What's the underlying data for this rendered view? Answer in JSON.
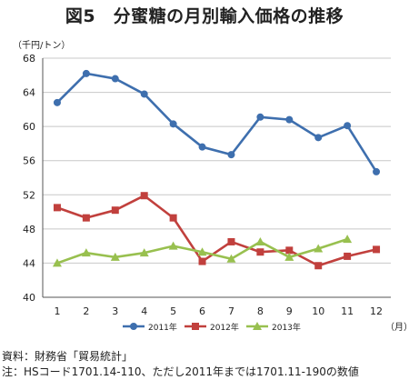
{
  "title": "図5　分蜜糖の月別輸入価格の推移",
  "unit_label": "（千円/トン）",
  "x_unit_label": "（月）",
  "notes": [
    "資料：財務省「貿易統計」",
    "注：HSコード1701.14-110、ただし2011年までは1701.11-190の数値"
  ],
  "chart_data": {
    "type": "line",
    "title": "図5　分蜜糖の月別輸入価格の推移",
    "xlabel": "（月）",
    "ylabel": "（千円/トン）",
    "categories": [
      "1",
      "2",
      "3",
      "4",
      "5",
      "6",
      "7",
      "8",
      "9",
      "10",
      "11",
      "12"
    ],
    "ylim": [
      40,
      68
    ],
    "yticks": [
      40,
      44,
      48,
      52,
      56,
      60,
      64,
      68
    ],
    "grid": true,
    "legend_position": "bottom",
    "series": [
      {
        "name": "2011年",
        "color": "#3e6fae",
        "marker": "circle",
        "values": [
          62.8,
          66.2,
          65.6,
          63.8,
          60.3,
          57.6,
          56.7,
          61.1,
          60.8,
          58.7,
          60.1,
          54.7
        ]
      },
      {
        "name": "2012年",
        "color": "#c1403d",
        "marker": "square",
        "values": [
          50.5,
          49.3,
          50.2,
          51.9,
          49.3,
          44.2,
          46.5,
          45.3,
          45.5,
          43.7,
          44.8,
          45.6
        ]
      },
      {
        "name": "2013年",
        "color": "#98c04f",
        "marker": "triangle",
        "values": [
          44.0,
          45.2,
          44.7,
          45.2,
          46.0,
          45.3,
          44.5,
          46.5,
          44.7,
          45.7,
          46.8,
          null
        ]
      }
    ]
  }
}
